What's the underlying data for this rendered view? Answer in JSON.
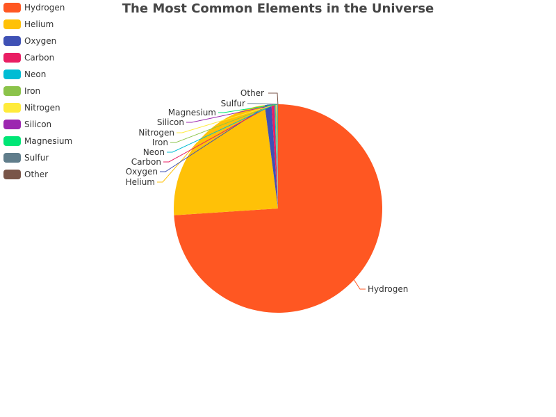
{
  "chart_data": {
    "type": "pie",
    "title": "The Most Common Elements in the Universe",
    "legend_position": "top-left",
    "categories": [
      "Hydrogen",
      "Helium",
      "Oxygen",
      "Carbon",
      "Neon",
      "Iron",
      "Nitrogen",
      "Silicon",
      "Magnesium",
      "Sulfur",
      "Other"
    ],
    "values": [
      74,
      24,
      1.04,
      0.46,
      0.13,
      0.11,
      0.1,
      0.07,
      0.06,
      0.05,
      0.02
    ],
    "colors": [
      "#ff5722",
      "#ffc107",
      "#3f51b5",
      "#e91e63",
      "#00bcd4",
      "#8bc34a",
      "#ffeb3b",
      "#9c27b0",
      "#00e676",
      "#607d8b",
      "#795548"
    ]
  }
}
